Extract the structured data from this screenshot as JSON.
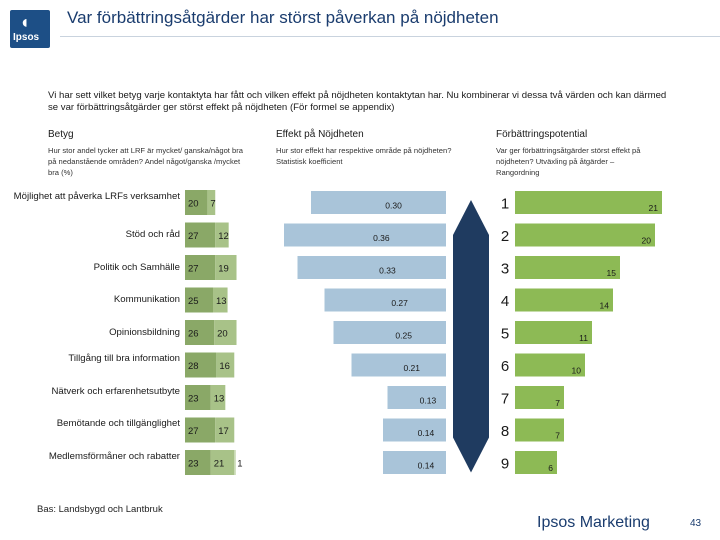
{
  "header": {
    "logo_text": "Ipsos",
    "title": "Var förbättringsåtgärder har störst påverkan på nöjdheten"
  },
  "intro": "Vi har sett vilket betyg varje kontaktyta har fått och vilken effekt på nöjdheten kontaktytan har. Nu kombinerar vi dessa två värden och kan därmed se var förbättringsåtgärder ger störst effekt på nöjdheten (För formel se appendix)",
  "columns": {
    "betyg": {
      "title": "Betyg",
      "subtitle": "Hur stor andel tycker att LRF är mycket/ ganska/något bra på nedanstående områden? Andel något/ganska /mycket bra (%)"
    },
    "effekt": {
      "title": "Effekt på Nöjdheten",
      "subtitle": "Hur stor effekt har respektive område på nöjdheten? Statistisk koefficient"
    },
    "potential": {
      "title": "Förbättringspotential",
      "subtitle": "Var ger förbättringsåtgärder störst effekt på nöjdheten? Utväxling på åtgärder – Rangordning"
    }
  },
  "colors": {
    "seg1": "#8aa867",
    "seg2": "#a8c288",
    "seg3": "#c7d9b0",
    "effect": "#a9c4d9",
    "potential": "#8dba55",
    "arrow": "#1f3b60",
    "title": "#1a3c6e"
  },
  "chart_data": {
    "type": "bar",
    "categories": [
      "Möjlighet att påverka LRFs verksamhet",
      "Stöd och råd",
      "Politik och Samhälle",
      "Kommunikation",
      "Opinionsbildning",
      "Tillgång till bra information",
      "Nätverk och erfarenhetsutbyte",
      "Bemötande och tillgänglighet",
      "Medlemsförmåner och rabatter"
    ],
    "betyg": {
      "series": [
        {
          "name": "Mycket bra",
          "values": [
            20,
            27,
            27,
            25,
            26,
            28,
            23,
            27,
            23
          ]
        },
        {
          "name": "Ganska bra",
          "values": [
            7,
            12,
            19,
            13,
            20,
            16,
            13,
            17,
            21
          ]
        },
        {
          "name": "Något bra",
          "values": [
            null,
            null,
            null,
            null,
            null,
            null,
            null,
            null,
            1
          ]
        }
      ],
      "labels": [
        [
          "20",
          "7",
          ""
        ],
        [
          "27",
          "12",
          ""
        ],
        [
          "27",
          "19",
          ""
        ],
        [
          "25",
          "13",
          ""
        ],
        [
          "26",
          "20",
          ""
        ],
        [
          "28",
          "16",
          ""
        ],
        [
          "23",
          "13",
          ""
        ],
        [
          "27",
          "17",
          ""
        ],
        [
          "23",
          "21",
          "1"
        ]
      ]
    },
    "effekt": {
      "values": [
        0.3,
        0.36,
        0.33,
        0.27,
        0.25,
        0.21,
        0.13,
        0.14,
        0.14
      ],
      "labels": [
        "0.30",
        "0.36",
        "0.33",
        "0.27",
        "0.25",
        "0.21",
        "0.13",
        "0.14",
        "0.14"
      ]
    },
    "potential": {
      "ranks": [
        "1",
        "2",
        "3",
        "4",
        "5",
        "6",
        "7",
        "8",
        "9"
      ],
      "values": [
        21,
        20,
        15,
        14,
        11,
        10,
        7,
        7,
        6
      ],
      "labels": [
        "21",
        "20",
        "15",
        "14",
        "11",
        "10",
        "7",
        "7",
        "6"
      ]
    }
  },
  "footer": {
    "source": "Bas: Landsbygd och Lantbruk",
    "brand": "Ipsos Marketing",
    "page": "43"
  }
}
